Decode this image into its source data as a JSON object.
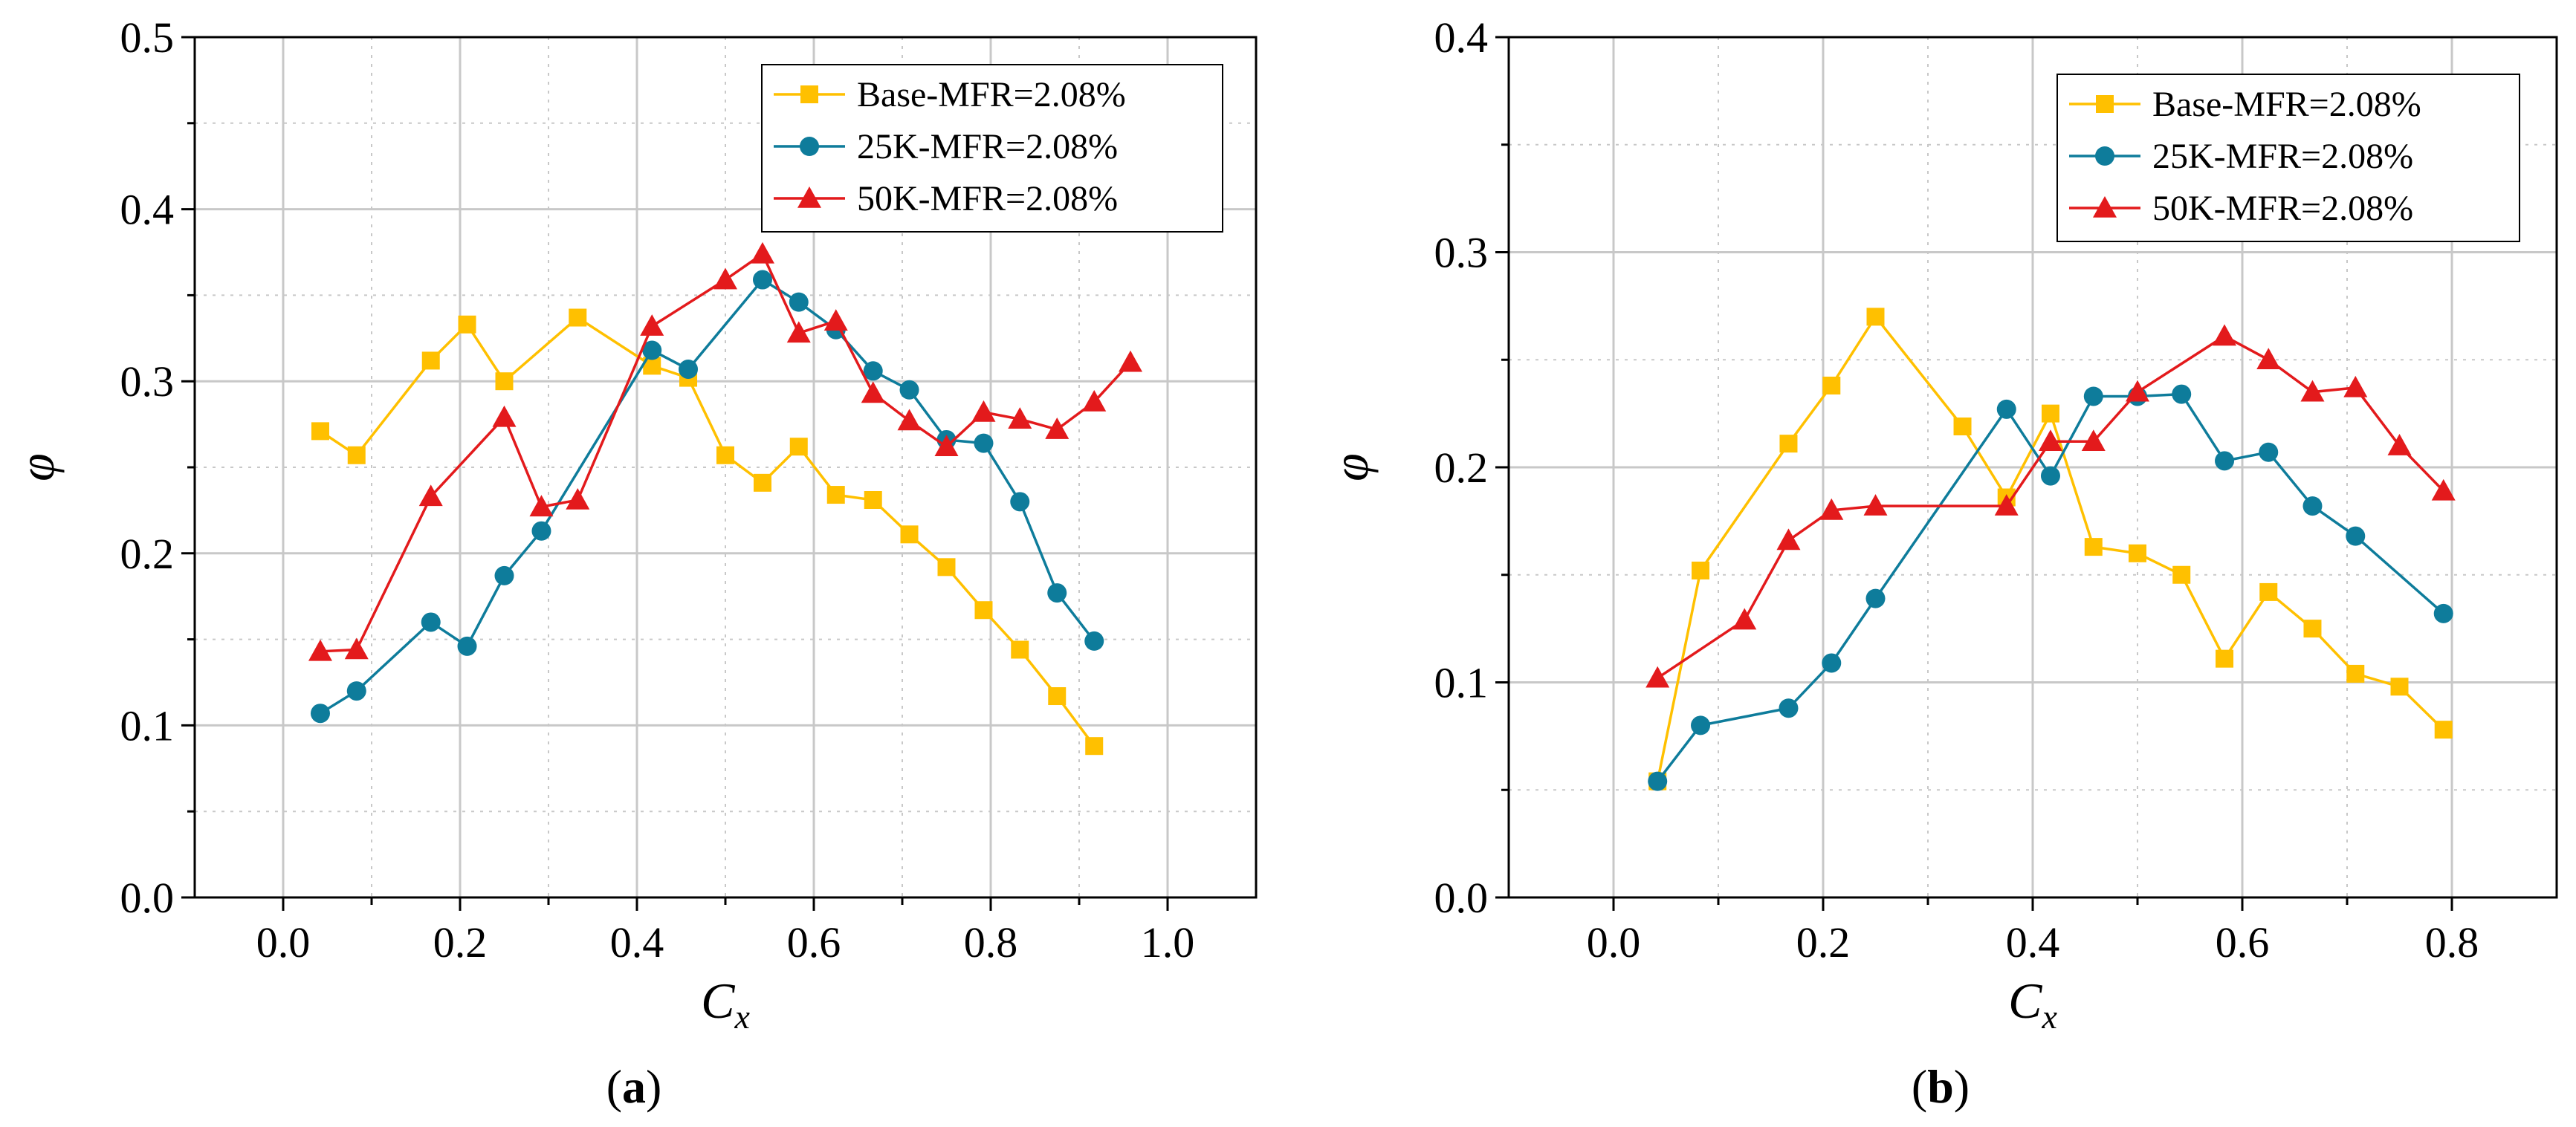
{
  "figure": {
    "sublabels": {
      "a_open": "(",
      "a_letter": "a",
      "a_close": ")",
      "b_open": "(",
      "b_letter": "b",
      "b_close": ")"
    },
    "colors": {
      "base": "#FFC000",
      "k25": "#0E7C9B",
      "k50": "#E31A1C",
      "grid": "#c8c8c8",
      "frame": "#000000"
    }
  },
  "chart_data": [
    {
      "type": "line",
      "panel": "a",
      "xlabel_main": "C",
      "xlabel_sub": "x",
      "ylabel": "φ",
      "xlim": [
        -0.1,
        1.1
      ],
      "ylim": [
        0.0,
        0.5
      ],
      "xticks": [
        0.0,
        0.2,
        0.4,
        0.6,
        0.8,
        1.0
      ],
      "xtick_labels": [
        "0.0",
        "0.2",
        "0.4",
        "0.6",
        "0.8",
        "1.0"
      ],
      "yticks": [
        0.0,
        0.1,
        0.2,
        0.3,
        0.4,
        0.5
      ],
      "ytick_labels": [
        "0.0",
        "0.1",
        "0.2",
        "0.3",
        "0.4",
        "0.5"
      ],
      "legend_position": "top-right",
      "series": [
        {
          "name": "Base-MFR=2.08%",
          "color_key": "base",
          "marker": "square",
          "x": [
            0.042,
            0.083,
            0.167,
            0.208,
            0.25,
            0.333,
            0.417,
            0.458,
            0.5,
            0.542,
            0.583,
            0.625,
            0.667,
            0.708,
            0.75,
            0.792,
            0.833,
            0.875,
            0.917
          ],
          "y": [
            0.271,
            0.257,
            0.312,
            0.333,
            0.3,
            0.337,
            0.309,
            0.302,
            0.257,
            0.241,
            0.262,
            0.234,
            0.231,
            0.211,
            0.192,
            0.167,
            0.144,
            0.117,
            0.088
          ]
        },
        {
          "name": "25K-MFR=2.08%",
          "color_key": "k25",
          "marker": "circle",
          "x": [
            0.042,
            0.083,
            0.167,
            0.208,
            0.25,
            0.292,
            0.417,
            0.458,
            0.542,
            0.583,
            0.625,
            0.667,
            0.708,
            0.75,
            0.792,
            0.833,
            0.875,
            0.917
          ],
          "y": [
            0.107,
            0.12,
            0.16,
            0.146,
            0.187,
            0.213,
            0.318,
            0.307,
            0.359,
            0.346,
            0.33,
            0.306,
            0.295,
            0.266,
            0.264,
            0.23,
            0.177,
            0.149
          ]
        },
        {
          "name": "50K-MFR=2.08%",
          "color_key": "k50",
          "marker": "triangle",
          "x": [
            0.042,
            0.083,
            0.167,
            0.25,
            0.292,
            0.333,
            0.417,
            0.5,
            0.542,
            0.583,
            0.625,
            0.667,
            0.708,
            0.75,
            0.792,
            0.833,
            0.875,
            0.917,
            0.958
          ],
          "y": [
            0.143,
            0.144,
            0.233,
            0.279,
            0.227,
            0.231,
            0.332,
            0.359,
            0.374,
            0.328,
            0.335,
            0.293,
            0.277,
            0.262,
            0.282,
            0.278,
            0.272,
            0.288,
            0.311
          ]
        }
      ]
    },
    {
      "type": "line",
      "panel": "b",
      "xlabel_main": "C",
      "xlabel_sub": "x",
      "ylabel": "φ",
      "xlim": [
        -0.1,
        0.9
      ],
      "ylim": [
        0.0,
        0.4
      ],
      "xticks": [
        0.0,
        0.2,
        0.4,
        0.6,
        0.8
      ],
      "xtick_labels": [
        "0.0",
        "0.2",
        "0.4",
        "0.6",
        "0.8"
      ],
      "yticks": [
        0.0,
        0.1,
        0.2,
        0.3,
        0.4
      ],
      "ytick_labels": [
        "0.0",
        "0.1",
        "0.2",
        "0.3",
        "0.4"
      ],
      "legend_position": "top-right",
      "series": [
        {
          "name": "Base-MFR=2.08%",
          "color_key": "base",
          "marker": "square",
          "x": [
            0.042,
            0.083,
            0.167,
            0.208,
            0.25,
            0.333,
            0.375,
            0.417,
            0.458,
            0.5,
            0.542,
            0.583,
            0.625,
            0.667,
            0.708,
            0.75,
            0.792
          ],
          "y": [
            0.054,
            0.152,
            0.211,
            0.238,
            0.27,
            0.219,
            0.186,
            0.225,
            0.163,
            0.16,
            0.15,
            0.111,
            0.142,
            0.125,
            0.104,
            0.098,
            0.078
          ]
        },
        {
          "name": "25K-MFR=2.08%",
          "color_key": "k25",
          "marker": "circle",
          "x": [
            0.042,
            0.083,
            0.167,
            0.208,
            0.25,
            0.375,
            0.417,
            0.458,
            0.5,
            0.542,
            0.583,
            0.625,
            0.667,
            0.708,
            0.792
          ],
          "y": [
            0.054,
            0.08,
            0.088,
            0.109,
            0.139,
            0.227,
            0.196,
            0.233,
            0.233,
            0.234,
            0.203,
            0.207,
            0.182,
            0.168,
            0.132
          ]
        },
        {
          "name": "50K-MFR=2.08%",
          "color_key": "k50",
          "marker": "triangle",
          "x": [
            0.042,
            0.125,
            0.167,
            0.208,
            0.25,
            0.375,
            0.417,
            0.458,
            0.5,
            0.583,
            0.625,
            0.667,
            0.708,
            0.75,
            0.792
          ],
          "y": [
            0.102,
            0.129,
            0.166,
            0.18,
            0.182,
            0.182,
            0.212,
            0.212,
            0.235,
            0.261,
            0.25,
            0.235,
            0.237,
            0.21,
            0.189
          ]
        }
      ]
    }
  ]
}
